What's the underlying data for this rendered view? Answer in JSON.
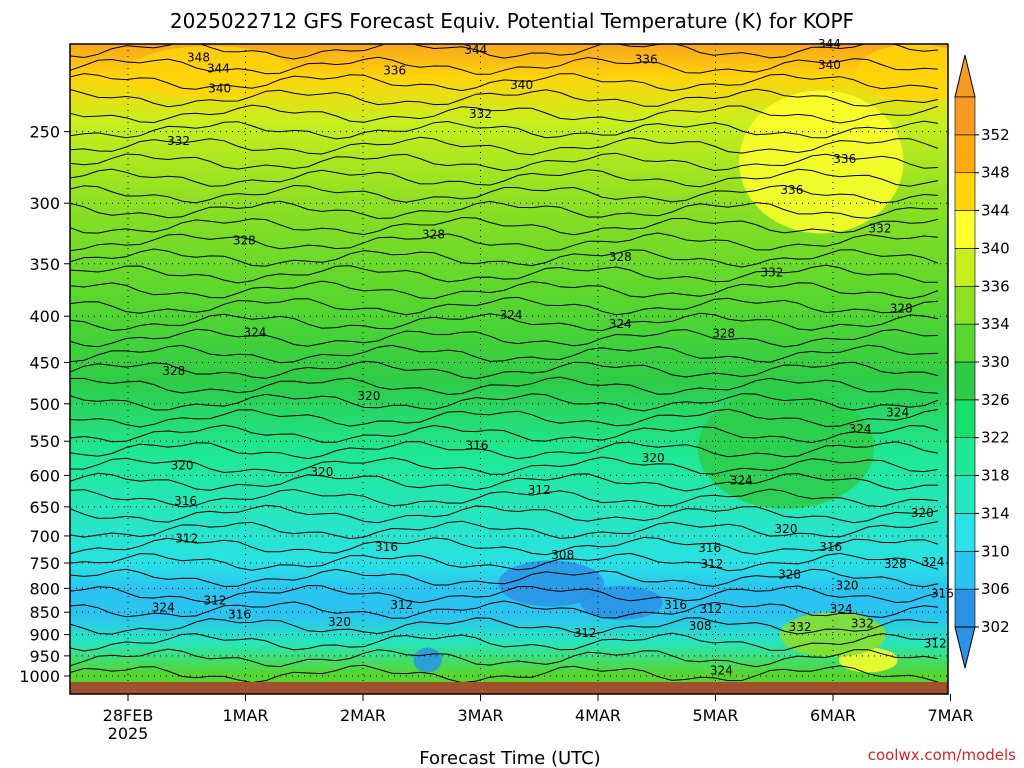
{
  "chart_data": {
    "type": "heatmap",
    "title": "2025022712 GFS Forecast Equiv. Potential Temperature (K) for KOPF",
    "xlabel": "Forecast Time (UTC)",
    "ylabel": "",
    "y_axis": {
      "scale": "log",
      "reversed": true,
      "range": [
        1000,
        200
      ],
      "ticks": [
        250,
        300,
        350,
        400,
        450,
        500,
        550,
        600,
        650,
        700,
        750,
        800,
        850,
        900,
        950,
        1000
      ]
    },
    "x_axis": {
      "range_days": [
        -0.5,
        7.0
      ],
      "ticks": [
        {
          "day": 0,
          "label": "28FEB",
          "sublabel": "2025"
        },
        {
          "day": 1,
          "label": "1MAR",
          "sublabel": ""
        },
        {
          "day": 2,
          "label": "2MAR",
          "sublabel": ""
        },
        {
          "day": 3,
          "label": "3MAR",
          "sublabel": ""
        },
        {
          "day": 4,
          "label": "4MAR",
          "sublabel": ""
        },
        {
          "day": 5,
          "label": "5MAR",
          "sublabel": ""
        },
        {
          "day": 6,
          "label": "6MAR",
          "sublabel": ""
        },
        {
          "day": 7,
          "label": "7MAR",
          "sublabel": ""
        }
      ]
    },
    "colorbar": {
      "levels": [
        302,
        306,
        310,
        314,
        318,
        322,
        326,
        330,
        334,
        336,
        340,
        344,
        348,
        352
      ],
      "colors": [
        "#2a93e6",
        "#2bc3f0",
        "#29e1e6",
        "#26e6bd",
        "#1ee894",
        "#17df6b",
        "#2dcc47",
        "#56d62e",
        "#8ee022",
        "#c8ee1d",
        "#ffff2c",
        "#ffd40b",
        "#ffab0f",
        "#f79a24"
      ]
    },
    "contour_labels": [
      {
        "v": "348",
        "day": 0.6,
        "p": 207
      },
      {
        "v": "344",
        "day": 0.77,
        "p": 213
      },
      {
        "v": "344",
        "day": 2.96,
        "p": 203
      },
      {
        "v": "344",
        "day": 5.97,
        "p": 200
      },
      {
        "v": "340",
        "day": 0.78,
        "p": 224
      },
      {
        "v": "340",
        "day": 3.35,
        "p": 222
      },
      {
        "v": "340",
        "day": 5.97,
        "p": 211
      },
      {
        "v": "336",
        "day": 2.27,
        "p": 214
      },
      {
        "v": "336",
        "day": 4.41,
        "p": 208
      },
      {
        "v": "336",
        "day": 6.1,
        "p": 268
      },
      {
        "v": "336",
        "day": 5.65,
        "p": 290
      },
      {
        "v": "332",
        "day": 0.43,
        "p": 256
      },
      {
        "v": "332",
        "day": 3.0,
        "p": 239
      },
      {
        "v": "332",
        "day": 5.48,
        "p": 358
      },
      {
        "v": "332",
        "day": 6.4,
        "p": 320
      },
      {
        "v": "332",
        "day": 5.72,
        "p": 883
      },
      {
        "v": "332",
        "day": 6.25,
        "p": 875
      },
      {
        "v": "328",
        "day": 0.99,
        "p": 330
      },
      {
        "v": "328",
        "day": 2.6,
        "p": 325
      },
      {
        "v": "328",
        "day": 4.19,
        "p": 344
      },
      {
        "v": "328",
        "day": 5.07,
        "p": 418
      },
      {
        "v": "328",
        "day": 6.58,
        "p": 392
      },
      {
        "v": "328",
        "day": 0.39,
        "p": 460
      },
      {
        "v": "328",
        "day": 6.53,
        "p": 752
      },
      {
        "v": "328",
        "day": 5.63,
        "p": 772
      },
      {
        "v": "324",
        "day": 1.08,
        "p": 417
      },
      {
        "v": "324",
        "day": 3.26,
        "p": 399
      },
      {
        "v": "324",
        "day": 4.19,
        "p": 408
      },
      {
        "v": "324",
        "day": 6.23,
        "p": 533
      },
      {
        "v": "324",
        "day": 6.55,
        "p": 511
      },
      {
        "v": "324",
        "day": 5.22,
        "p": 608
      },
      {
        "v": "324",
        "day": 6.07,
        "p": 843
      },
      {
        "v": "324",
        "day": 0.3,
        "p": 840
      },
      {
        "v": "324",
        "day": 5.05,
        "p": 986
      },
      {
        "v": "324",
        "day": 6.85,
        "p": 748
      },
      {
        "v": "320",
        "day": 2.05,
        "p": 490
      },
      {
        "v": "320",
        "day": 0.46,
        "p": 585
      },
      {
        "v": "320",
        "day": 1.65,
        "p": 595
      },
      {
        "v": "320",
        "day": 4.47,
        "p": 574
      },
      {
        "v": "320",
        "day": 5.6,
        "p": 688
      },
      {
        "v": "320",
        "day": 6.76,
        "p": 660
      },
      {
        "v": "320",
        "day": 1.8,
        "p": 872
      },
      {
        "v": "320",
        "day": 6.12,
        "p": 794
      },
      {
        "v": "316",
        "day": 2.97,
        "p": 556
      },
      {
        "v": "316",
        "day": 0.49,
        "p": 640
      },
      {
        "v": "316",
        "day": 2.2,
        "p": 720
      },
      {
        "v": "316",
        "day": 0.95,
        "p": 855
      },
      {
        "v": "316",
        "day": 4.95,
        "p": 722
      },
      {
        "v": "316",
        "day": 5.98,
        "p": 720
      },
      {
        "v": "316",
        "day": 4.66,
        "p": 835
      },
      {
        "v": "316",
        "day": 6.93,
        "p": 810
      },
      {
        "v": "312",
        "day": 3.5,
        "p": 623
      },
      {
        "v": "312",
        "day": 0.5,
        "p": 705
      },
      {
        "v": "312",
        "day": 0.74,
        "p": 825
      },
      {
        "v": "312",
        "day": 2.33,
        "p": 835
      },
      {
        "v": "312",
        "day": 4.97,
        "p": 752
      },
      {
        "v": "312",
        "day": 3.89,
        "p": 896
      },
      {
        "v": "312",
        "day": 4.96,
        "p": 843
      },
      {
        "v": "312",
        "day": 6.87,
        "p": 920
      },
      {
        "v": "308",
        "day": 3.7,
        "p": 735
      },
      {
        "v": "308",
        "day": 4.87,
        "p": 881
      }
    ],
    "watermark": "coolwx.com/models"
  }
}
